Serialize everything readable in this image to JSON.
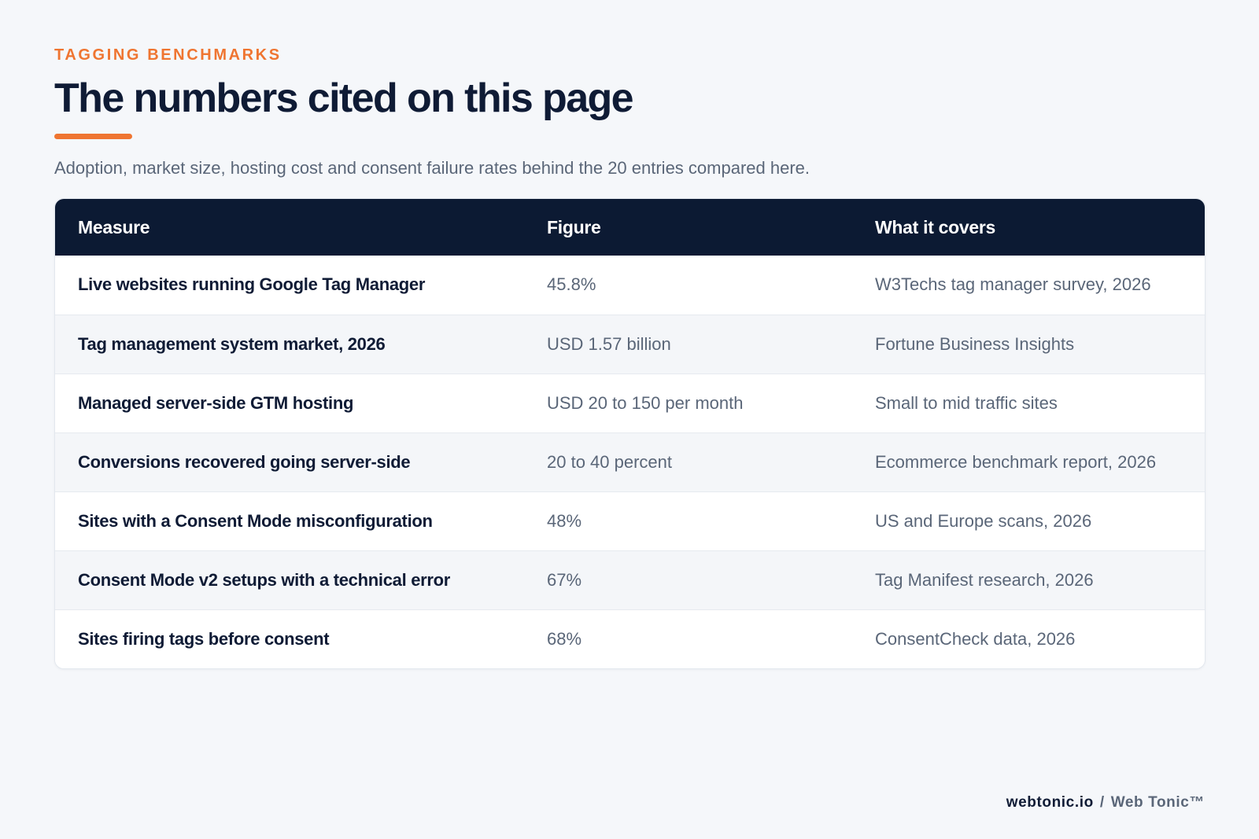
{
  "header": {
    "eyebrow": "TAGGING BENCHMARKS",
    "title": "The numbers cited on this page",
    "subtitle": "Adoption, market size, hosting cost and consent failure rates behind the 20 entries compared here."
  },
  "table": {
    "columns": [
      "Measure",
      "Figure",
      "What it covers"
    ],
    "rows": [
      {
        "measure": "Live websites running Google Tag Manager",
        "figure": "45.8%",
        "covers": "W3Techs tag manager survey, 2026"
      },
      {
        "measure": "Tag management system market, 2026",
        "figure": "USD 1.57 billion",
        "covers": "Fortune Business Insights"
      },
      {
        "measure": "Managed server-side GTM hosting",
        "figure": "USD 20 to 150 per month",
        "covers": "Small to mid traffic sites"
      },
      {
        "measure": "Conversions recovered going server-side",
        "figure": "20 to 40 percent",
        "covers": "Ecommerce benchmark report, 2026"
      },
      {
        "measure": "Sites with a Consent Mode misconfiguration",
        "figure": "48%",
        "covers": "US and Europe scans, 2026"
      },
      {
        "measure": "Consent Mode v2 setups with a technical error",
        "figure": "67%",
        "covers": "Tag Manifest research, 2026"
      },
      {
        "measure": "Sites firing tags before consent",
        "figure": "68%",
        "covers": "ConsentCheck data, 2026"
      }
    ]
  },
  "footer": {
    "domain": "webtonic.io",
    "separator": "/",
    "brand": "Web Tonic™"
  },
  "colors": {
    "accent": "#ef7531",
    "header_bg": "#0c1a33",
    "text_dark": "#0f1b35",
    "text_muted": "#5a6678",
    "page_bg": "#f5f7fa"
  }
}
